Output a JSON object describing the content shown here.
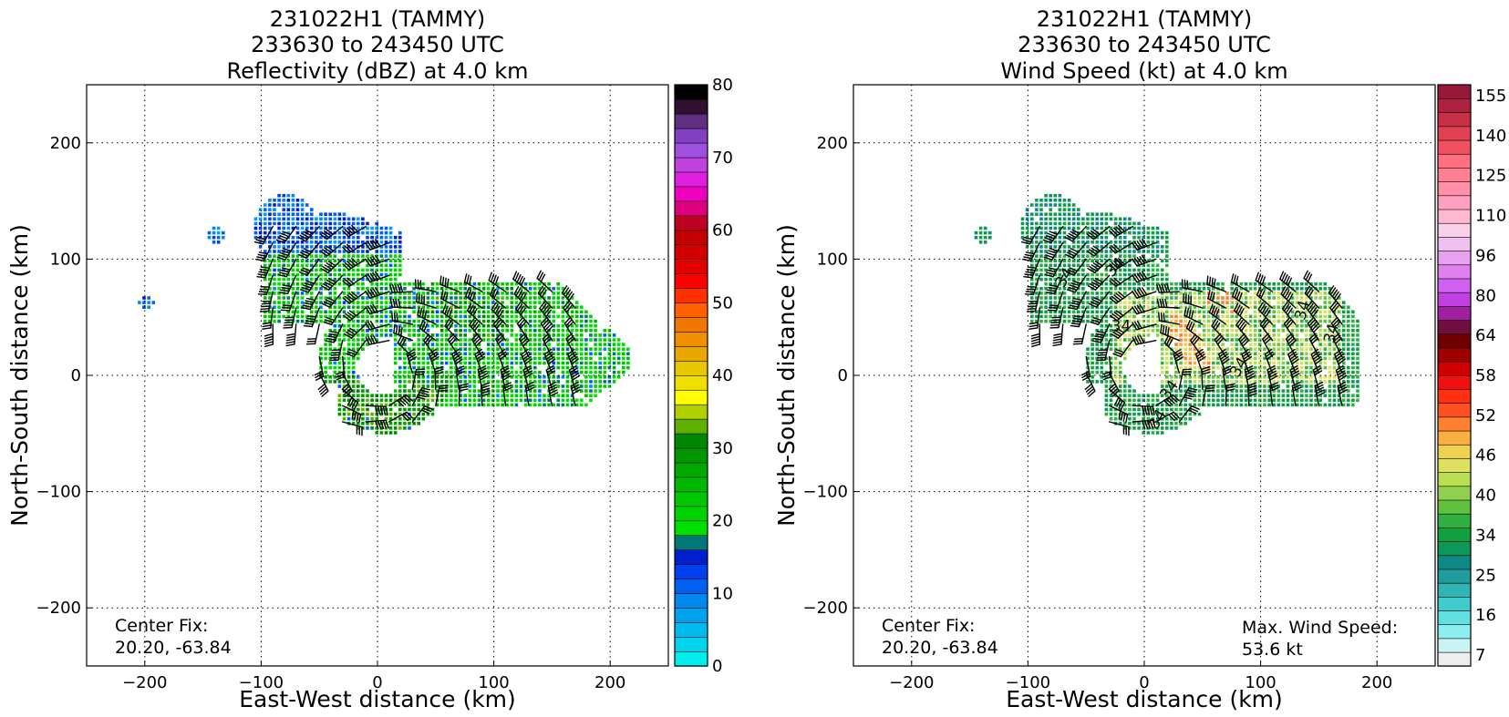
{
  "panels": [
    {
      "id": "reflectivity",
      "title_lines": [
        "231022H1 (TAMMY)",
        "233630 to 243450 UTC",
        "Reflectivity (dBZ) at 4.0 km"
      ],
      "note_lines": [
        "Center Fix:",
        "20.20, -63.84"
      ],
      "colorbar_ticks": [
        "80",
        "70",
        "60",
        "50",
        "40",
        "30",
        "20",
        "10",
        "0"
      ]
    },
    {
      "id": "windspeed",
      "title_lines": [
        "231022H1 (TAMMY)",
        "233630 to 243450 UTC",
        "Wind Speed (kt) at 4.0 km"
      ],
      "note_lines": [
        "Center Fix:",
        "20.20, -63.84"
      ],
      "max_wind_lines": [
        "Max. Wind Speed:",
        "53.6 kt"
      ],
      "colorbar_ticks": [
        "155",
        "140",
        "125",
        "110",
        "96",
        "80",
        "64",
        "58",
        "52",
        "46",
        "40",
        "34",
        "25",
        "16",
        "7"
      ],
      "contour_labels": [
        "34",
        "34",
        "34",
        "34",
        "34",
        "34",
        "34",
        "34"
      ]
    }
  ],
  "chart_data": [
    {
      "type": "heatmap",
      "title": "231022H1 (TAMMY)\n233630 to 243450 UTC\nReflectivity (dBZ) at 4.0 km",
      "xlabel": "East-West distance (km)",
      "ylabel": "North-South distance (km)",
      "xlim": [
        -250,
        250
      ],
      "ylim": [
        -250,
        250
      ],
      "xticks": [
        -200,
        -100,
        0,
        100,
        200
      ],
      "yticks": [
        -200,
        -100,
        0,
        100,
        200
      ],
      "grid": true,
      "colorbar": {
        "min": 0,
        "max": 80,
        "step": 2.5,
        "ticks": [
          0,
          10,
          20,
          30,
          40,
          50,
          60,
          70,
          80
        ],
        "colors": [
          "#00eeee",
          "#00d4ee",
          "#00bbee",
          "#00a2ee",
          "#0088ee",
          "#0060f0",
          "#0040ee",
          "#0020d0",
          "#007878",
          "#00e000",
          "#00d400",
          "#00c800",
          "#00b800",
          "#00a800",
          "#009800",
          "#008800",
          "#60b000",
          "#b0d000",
          "#ffff00",
          "#f0e000",
          "#e8c800",
          "#e8a800",
          "#f09000",
          "#f07800",
          "#ff6000",
          "#ff3000",
          "#ff0000",
          "#e40000",
          "#d40000",
          "#c40000",
          "#c00020",
          "#e00080",
          "#f000c0",
          "#e020e0",
          "#c040e0",
          "#a050e0",
          "#8040c0",
          "#603080",
          "#301030",
          "#000000"
        ]
      },
      "series": [],
      "center_fix": "20.20, -63.84"
    },
    {
      "type": "heatmap",
      "title": "231022H1 (TAMMY)\n233630 to 243450 UTC\nWind Speed (kt) at 4.0 km",
      "xlabel": "East-West distance (km)",
      "ylabel": "North-South distance (km)",
      "xlim": [
        -250,
        250
      ],
      "ylim": [
        -250,
        250
      ],
      "xticks": [
        -200,
        -100,
        0,
        100,
        200
      ],
      "yticks": [
        -200,
        -100,
        0,
        100,
        200
      ],
      "grid": true,
      "colorbar": {
        "ticks": [
          7,
          16,
          25,
          34,
          40,
          46,
          52,
          58,
          64,
          80,
          96,
          110,
          125,
          140,
          155
        ],
        "colors": [
          "#eeeeee",
          "#c8f4f4",
          "#8ceeee",
          "#60e0e0",
          "#40cccc",
          "#30b4b4",
          "#209c9c",
          "#108888",
          "#0c9858",
          "#10a040",
          "#30b040",
          "#60c040",
          "#90d050",
          "#b8e050",
          "#e0e060",
          "#f0d050",
          "#f8b040",
          "#ff8030",
          "#ff5020",
          "#ff3010",
          "#f01010",
          "#d00000",
          "#a00000",
          "#700000",
          "#701040",
          "#a020a0",
          "#c040e0",
          "#d060f0",
          "#e080f0",
          "#e8a0f0",
          "#f0c0f0",
          "#f8d0e8",
          "#ffb8d0",
          "#ffa0c0",
          "#ff90a8",
          "#ff8090",
          "#ff7080",
          "#f05060",
          "#e04050",
          "#c83048",
          "#b02040",
          "#981838"
        ]
      },
      "series": [],
      "contour_level": 34,
      "center_fix": "20.20, -63.84",
      "max_wind_speed": "53.6 kt"
    }
  ]
}
